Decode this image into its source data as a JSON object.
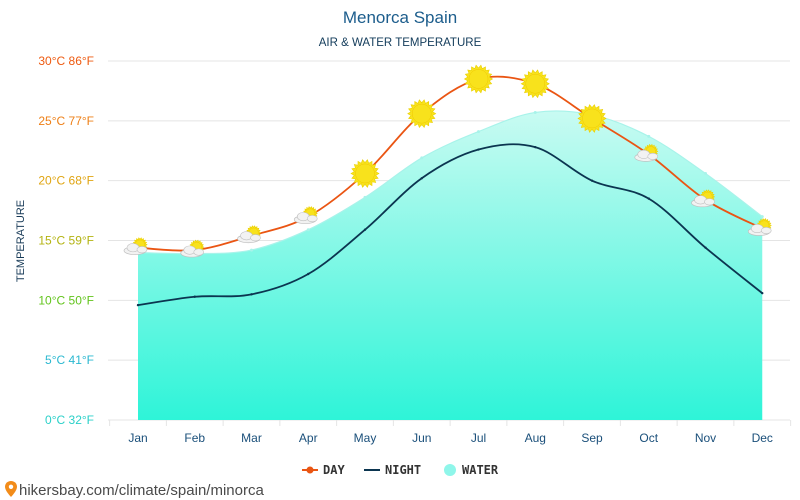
{
  "chart_data": {
    "type": "line",
    "title": "Menorca Spain",
    "subtitle": "AIR & WATER TEMPERATURE",
    "ylabel": "TEMPERATURE",
    "xlabel": "",
    "ylim": [
      0,
      30
    ],
    "grid": true,
    "legend_position": "bottom-center",
    "categories": [
      "Jan",
      "Feb",
      "Mar",
      "Apr",
      "May",
      "Jun",
      "Jul",
      "Aug",
      "Sep",
      "Oct",
      "Nov",
      "Dec"
    ],
    "y_ticks": [
      {
        "value": 0,
        "label": "0°C 32°F",
        "color": "#2ad0c8"
      },
      {
        "value": 5,
        "label": "5°C 41°F",
        "color": "#2ab8d0"
      },
      {
        "value": 10,
        "label": "10°C 50°F",
        "color": "#62c41c"
      },
      {
        "value": 15,
        "label": "15°C 59°F",
        "color": "#b3b311"
      },
      {
        "value": 20,
        "label": "20°C 68°F",
        "color": "#e0a512"
      },
      {
        "value": 25,
        "label": "25°C 77°F",
        "color": "#ee7f16"
      },
      {
        "value": 30,
        "label": "30°C 86°F",
        "color": "#ee5a10"
      }
    ],
    "series": [
      {
        "name": "DAY",
        "color": "#ea5513",
        "values": [
          14.4,
          14.2,
          15.4,
          17.0,
          20.6,
          25.6,
          28.5,
          28.1,
          25.2,
          22.2,
          18.4,
          16.0
        ]
      },
      {
        "name": "NIGHT",
        "color": "#0b3550",
        "values": [
          9.6,
          10.3,
          10.5,
          12.2,
          15.9,
          20.2,
          22.6,
          22.8,
          20.0,
          18.5,
          14.4,
          10.6
        ]
      },
      {
        "name": "WATER",
        "color": "#5af0dd",
        "values": [
          14.0,
          13.9,
          14.2,
          15.9,
          18.6,
          21.9,
          24.1,
          25.7,
          25.5,
          23.7,
          20.6,
          17.0
        ]
      }
    ],
    "weather_icons": [
      "partly-cloudy",
      "partly-cloudy",
      "partly-cloudy",
      "partly-cloudy",
      "sunny",
      "sunny",
      "sunny",
      "sunny",
      "sunny",
      "partly-cloudy",
      "partly-cloudy",
      "partly-cloudy"
    ]
  },
  "legend": {
    "day": "DAY",
    "night": "NIGHT",
    "water": "WATER"
  },
  "footer": {
    "source": "hikersbay.com/climate/spain/minorca"
  },
  "colors": {
    "title": "#1c5d8c",
    "grid": "#e4e4e4",
    "water_top": "#c9fbf2",
    "water_bottom": "#2ef4d8",
    "sun_fill": "#f8e21c",
    "sun_stroke": "#ead000",
    "cloud_fill": "#f2f2f2",
    "cloud_stroke": "#c0c0c0",
    "footer_pin": "#f28c1a"
  }
}
